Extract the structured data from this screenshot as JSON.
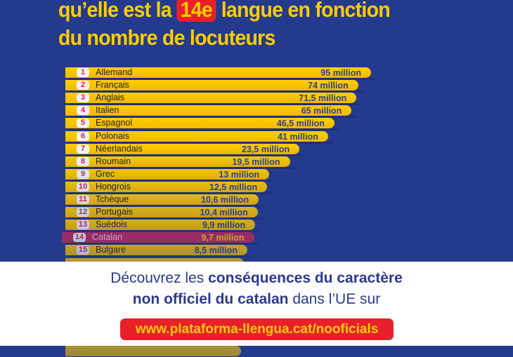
{
  "header": {
    "line1_before": "qu’elle est la",
    "line1_highlight": "14e",
    "line1_after": "langue en fonction",
    "line2": "du nombre de locuteurs"
  },
  "chart_data": {
    "type": "bar",
    "orientation": "horizontal",
    "unit_label": "million",
    "highlight_rank": 14,
    "rows": [
      {
        "rank": "1",
        "language": "Allemand",
        "value": 95,
        "label": "95 million"
      },
      {
        "rank": "2",
        "language": "Français",
        "value": 74,
        "label": "74 million"
      },
      {
        "rank": "3",
        "language": "Anglais",
        "value": 71.5,
        "label": "71,5 million"
      },
      {
        "rank": "4",
        "language": "Italien",
        "value": 65,
        "label": "65 million"
      },
      {
        "rank": "5",
        "language": "Espagnol",
        "value": 46.5,
        "label": "46,5 million"
      },
      {
        "rank": "6",
        "language": "Polonais",
        "value": 41,
        "label": "41 million"
      },
      {
        "rank": "7",
        "language": "Néerlandais",
        "value": 23.5,
        "label": "23,5 million"
      },
      {
        "rank": "8",
        "language": "Roumain",
        "value": 19.5,
        "label": "19,5 million"
      },
      {
        "rank": "9",
        "language": "Grec",
        "value": 13,
        "label": "13 million"
      },
      {
        "rank": "10",
        "language": "Hongrois",
        "value": 12.5,
        "label": "12,5 million"
      },
      {
        "rank": "11",
        "language": "Tchèque",
        "value": 10.6,
        "label": "10,6 million"
      },
      {
        "rank": "12",
        "language": "Portugais",
        "value": 10.4,
        "label": "10,4  million"
      },
      {
        "rank": "13",
        "language": "Suédois",
        "value": 9.9,
        "label": "9,9 million"
      },
      {
        "rank": "14",
        "language": "Catalan",
        "value": 9.7,
        "label": "9,7 million"
      },
      {
        "rank": "15",
        "language": "Bulgare",
        "value": 8.5,
        "label": "8,5 million"
      }
    ]
  },
  "colors": {
    "background": "#243a8c",
    "bar": "#ffcc00",
    "highlight": "#c4265a",
    "accent_red": "#e8202a"
  },
  "footer": {
    "line1_regular": "Découvrez les",
    "line1_bold": "conséquences du caractère",
    "line2_bold": "non officiel du catalan",
    "line2_regular": "dans l’UE sur",
    "link": "www.plataforma-llengua.cat/nooficials"
  }
}
